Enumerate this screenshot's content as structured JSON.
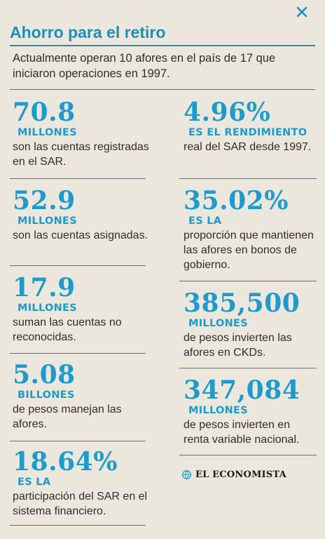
{
  "header": {
    "title": "Ahorro para el retiro",
    "intro": "Actualmente operan 10 afores en el país de 17 que iniciaron operaciones en 1997."
  },
  "left_stats": [
    {
      "value": "70.8",
      "unit": "MILLONES",
      "desc": "son las cuentas registradas en el SAR."
    },
    {
      "value": "52.9",
      "unit": "MILLONES",
      "desc": "son las cuentas asignadas."
    },
    {
      "value": "17.9",
      "unit": "MILLONES",
      "desc": "suman las cuentas no reconocidas."
    },
    {
      "value": "5.08",
      "unit": "BILLONES",
      "desc": "de pesos manejan las afores."
    },
    {
      "value": "18.64%",
      "unit": "ES LA",
      "desc": "participación del SAR en el sistema financiero."
    }
  ],
  "right_stats": [
    {
      "value": "4.96%",
      "unit": "ES EL RENDIMIENTO",
      "desc": "real del SAR desde 1997."
    },
    {
      "value": "35.02%",
      "unit": "ES LA",
      "desc": "proporción que mantienen las afores en bonos de gobierno."
    },
    {
      "value": "385,500",
      "unit": "MILLONES",
      "desc": "de pesos invierten las afores en CKDs."
    },
    {
      "value": "347,084",
      "unit": "MILLONES",
      "desc": "de pesos invierten en renta variable nacional."
    }
  ],
  "brand": {
    "name": "EL ECONOMISTA"
  },
  "colors": {
    "accent": "#1c9bd0",
    "background": "#ece7dc",
    "text": "#2e2e2e"
  }
}
